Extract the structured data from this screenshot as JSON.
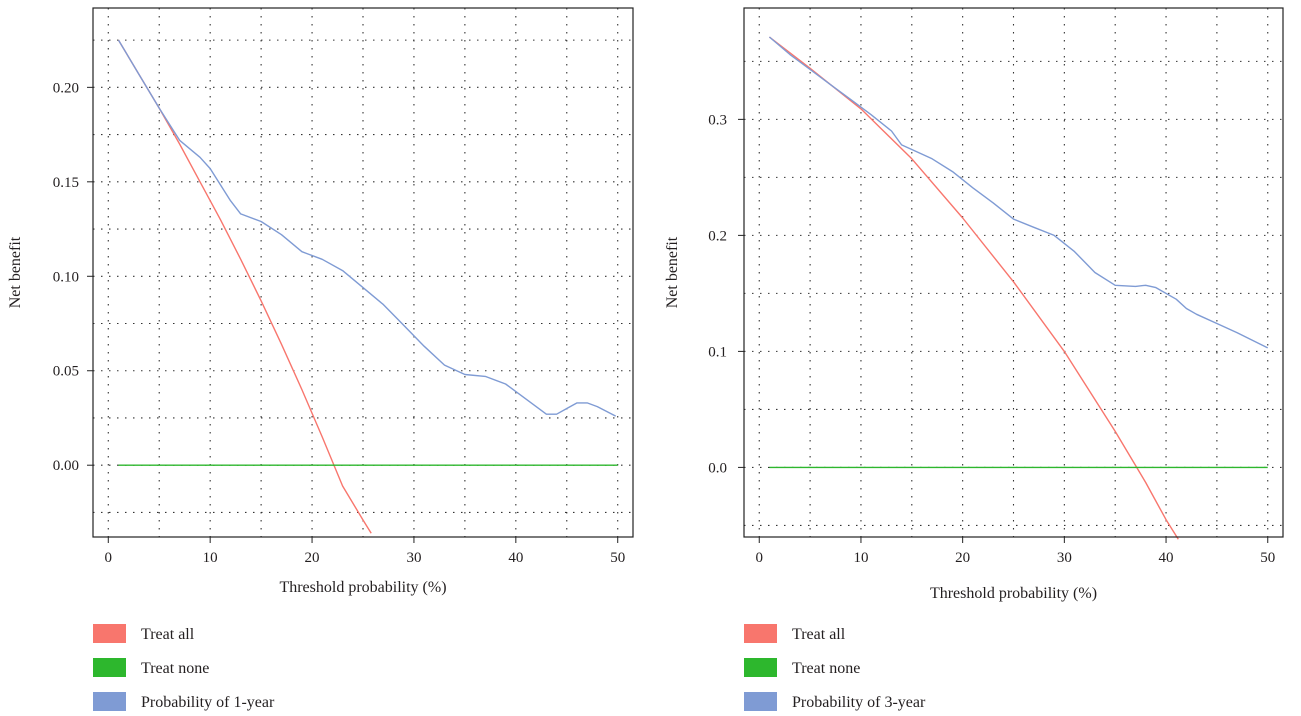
{
  "colors": {
    "treat_all": "#f8766d",
    "treat_none": "#2db72d",
    "model": "#7f9bd4",
    "grid": "#333333",
    "axis": "#222222"
  },
  "chart_data": [
    {
      "type": "line",
      "xlabel": "Threshold probability (%)",
      "ylabel": "Net benefit",
      "xlim": [
        -1.5,
        51.5
      ],
      "ylim": [
        -0.038,
        0.242
      ],
      "xticks": [
        0,
        10,
        20,
        30,
        40,
        50
      ],
      "xtick_labels": [
        "0",
        "10",
        "20",
        "30",
        "40",
        "50"
      ],
      "yticks": [
        0.0,
        0.05,
        0.1,
        0.15,
        0.2
      ],
      "ytick_labels": [
        "0.00",
        "0.05",
        "0.10",
        "0.15",
        "0.20"
      ],
      "grid_x": [
        5,
        15,
        25,
        35,
        45
      ],
      "grid_y": [
        -0.025,
        0.025,
        0.075,
        0.125,
        0.175,
        0.225
      ],
      "grid": "dotted",
      "legend_position": "bottom-left",
      "series": [
        {
          "name": "Treat all",
          "color_key": "treat_all",
          "x": [
            1,
            3,
            5,
            7,
            9,
            11,
            13,
            15,
            17,
            19,
            21,
            23,
            25,
            25.8
          ],
          "y": [
            0.225,
            0.207,
            0.189,
            0.17,
            0.15,
            0.13,
            0.109,
            0.087,
            0.064,
            0.04,
            0.015,
            -0.011,
            -0.029,
            -0.036
          ]
        },
        {
          "name": "Treat none",
          "color_key": "treat_none",
          "x": [
            1,
            50
          ],
          "y": [
            0,
            0
          ]
        },
        {
          "name": "Probability of 1-year",
          "color_key": "model",
          "x": [
            1,
            3,
            5,
            7,
            9,
            10,
            12,
            13,
            15,
            17,
            19,
            19.5,
            21,
            23,
            25,
            27,
            29,
            31,
            33,
            35,
            37,
            39,
            41,
            43,
            44,
            45,
            46,
            47,
            48,
            49.8
          ],
          "y": [
            0.225,
            0.207,
            0.189,
            0.172,
            0.163,
            0.157,
            0.14,
            0.133,
            0.129,
            0.122,
            0.113,
            0.112,
            0.109,
            0.103,
            0.094,
            0.085,
            0.074,
            0.063,
            0.053,
            0.048,
            0.047,
            0.043,
            0.035,
            0.027,
            0.027,
            0.03,
            0.033,
            0.033,
            0.031,
            0.026
          ]
        }
      ]
    },
    {
      "type": "line",
      "xlabel": "Threshold probability (%)",
      "ylabel": "Net benefit",
      "xlim": [
        -1.5,
        51.5
      ],
      "ylim": [
        -0.06,
        0.396
      ],
      "xticks": [
        0,
        10,
        20,
        30,
        40,
        50
      ],
      "xtick_labels": [
        "0",
        "10",
        "20",
        "30",
        "40",
        "50"
      ],
      "yticks": [
        0.0,
        0.1,
        0.2,
        0.3
      ],
      "ytick_labels": [
        "0.0",
        "0.1",
        "0.2",
        "0.3"
      ],
      "grid_x": [
        5,
        15,
        25,
        35,
        45
      ],
      "grid_y": [
        -0.05,
        0.05,
        0.15,
        0.25,
        0.35
      ],
      "grid": "dotted",
      "legend_position": "bottom-left",
      "series": [
        {
          "name": "Treat all",
          "color_key": "treat_all",
          "x": [
            1,
            5,
            10,
            15,
            20,
            25,
            30,
            35,
            38,
            40,
            41.2
          ],
          "y": [
            0.371,
            0.344,
            0.309,
            0.266,
            0.215,
            0.16,
            0.1,
            0.031,
            -0.013,
            -0.045,
            -0.062
          ]
        },
        {
          "name": "Treat none",
          "color_key": "treat_none",
          "x": [
            1,
            50
          ],
          "y": [
            0,
            0
          ]
        },
        {
          "name": "Probability of 3-year",
          "color_key": "model",
          "x": [
            1,
            3,
            5,
            7,
            9,
            11,
            13,
            14,
            15,
            17,
            19,
            21,
            23,
            25,
            27,
            29,
            31,
            33,
            35,
            37,
            38,
            39,
            41,
            42,
            43,
            45,
            47,
            50
          ],
          "y": [
            0.371,
            0.356,
            0.343,
            0.33,
            0.317,
            0.304,
            0.29,
            0.278,
            0.274,
            0.266,
            0.255,
            0.241,
            0.228,
            0.214,
            0.207,
            0.2,
            0.186,
            0.168,
            0.157,
            0.156,
            0.157,
            0.155,
            0.145,
            0.137,
            0.132,
            0.124,
            0.116,
            0.103
          ]
        }
      ]
    }
  ]
}
